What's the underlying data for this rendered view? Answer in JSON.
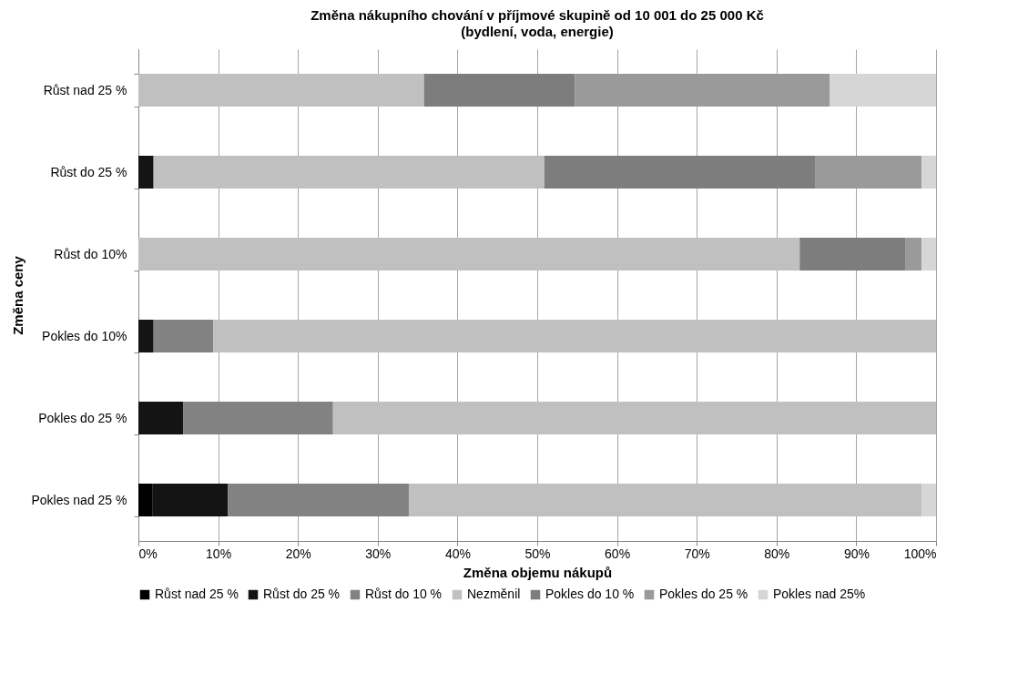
{
  "chart_data": {
    "type": "bar",
    "orientation": "horizontal",
    "stacked": true,
    "title": "Změna nákupního chování v příjmové skupině od 10 001 do 25 000 Kč",
    "subtitle": "(bydlení, voda, energie)",
    "xlabel": "Změna objemu nákupů",
    "ylabel": "Změna ceny",
    "categories": [
      "Růst nad 25 %",
      "Růst do 25 %",
      "Růst do 10%",
      "Pokles do 10%",
      "Pokles do 25 %",
      "Pokles nad 25 %"
    ],
    "series": [
      {
        "name": "Růst nad 25 %",
        "color": "#000000",
        "values": [
          null,
          null,
          null,
          null,
          null,
          1.8
        ]
      },
      {
        "name": "Růst do 25 %",
        "color": "#141414",
        "values": [
          null,
          1.9,
          null,
          1.9,
          5.6,
          9.4
        ]
      },
      {
        "name": "Růst do 10 %",
        "color": "#828282",
        "values": [
          null,
          null,
          null,
          7.5,
          18.8,
          22.7
        ]
      },
      {
        "name": "Nezměnil",
        "color": "#c0c0c0",
        "values": [
          35.8,
          49.0,
          82.9,
          90.6,
          75.6,
          64.3
        ]
      },
      {
        "name": "Pokles do 10 %",
        "color": "#7d7d7d",
        "values": [
          18.9,
          34.0,
          13.3,
          null,
          null,
          null
        ]
      },
      {
        "name": "Pokles do 25 %",
        "color": "#9a9a9a",
        "values": [
          32.0,
          13.3,
          2.0,
          null,
          null,
          null
        ]
      },
      {
        "name": "Pokles nad 25%",
        "color": "#d6d6d6",
        "values": [
          13.3,
          1.8,
          1.8,
          null,
          null,
          1.8
        ]
      }
    ],
    "xlim": [
      0,
      100
    ],
    "xticks": [
      {
        "value": 0,
        "label": "0%"
      },
      {
        "value": 10,
        "label": "10%"
      },
      {
        "value": 20,
        "label": "20%"
      },
      {
        "value": 30,
        "label": "30%"
      },
      {
        "value": 40,
        "label": "40%"
      },
      {
        "value": 50,
        "label": "50%"
      },
      {
        "value": 60,
        "label": "60%"
      },
      {
        "value": 70,
        "label": "70%"
      },
      {
        "value": 80,
        "label": "80%"
      },
      {
        "value": 90,
        "label": "90%"
      },
      {
        "value": 100,
        "label": "100%"
      }
    ],
    "grid": "x",
    "legend": "bottom"
  }
}
